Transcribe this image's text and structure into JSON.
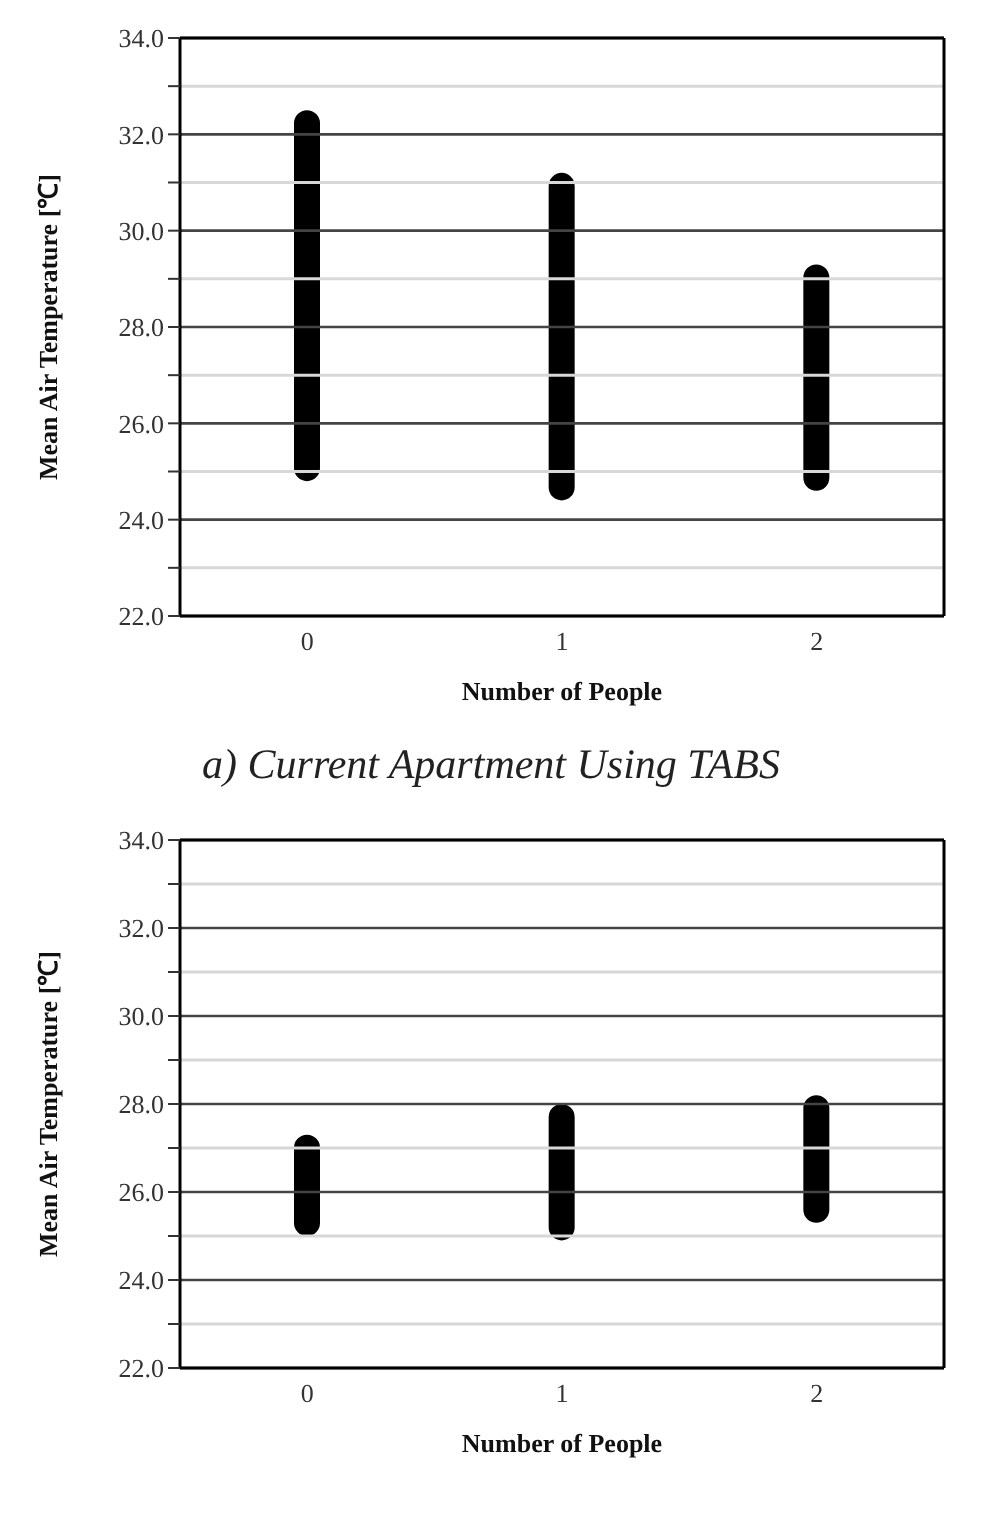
{
  "chart_data": [
    {
      "type": "bar",
      "title": "a) Current Apartment Using TABS",
      "xlabel": "Number of People",
      "ylabel": "Mean Air Temperature [℃]",
      "categories": [
        "0",
        "1",
        "2"
      ],
      "series": [
        {
          "color": "#000000",
          "base": [
            24.8,
            24.4,
            24.6
          ],
          "values": [
            7.7,
            6.8,
            4.7
          ]
        }
      ],
      "ylim": [
        22,
        34
      ],
      "yticks": [
        {
          "value": 22,
          "label": "22.0"
        },
        {
          "value": 23,
          "label": null
        },
        {
          "value": 24,
          "label": "24.0"
        },
        {
          "value": 25,
          "label": null
        },
        {
          "value": 26,
          "label": "26.0"
        },
        {
          "value": 27,
          "label": null
        },
        {
          "value": 28,
          "label": "28.0"
        },
        {
          "value": 29,
          "label": null
        },
        {
          "value": 30,
          "label": "30.0"
        },
        {
          "value": 31,
          "label": null
        },
        {
          "value": 32,
          "label": "32.0"
        },
        {
          "value": 33,
          "label": null
        },
        {
          "value": 34,
          "label": "34.0"
        }
      ],
      "grid": "y"
    },
    {
      "type": "bar",
      "xlabel": "Number of People",
      "ylabel": "Mean Air Temperature [℃]",
      "categories": [
        "0",
        "1",
        "2"
      ],
      "series": [
        {
          "color": "#000000",
          "base": [
            25.0,
            24.9,
            25.3
          ],
          "values": [
            2.3,
            3.1,
            2.9
          ]
        }
      ],
      "ylim": [
        22,
        34
      ],
      "yticks": [
        {
          "value": 22,
          "label": "22.0"
        },
        {
          "value": 23,
          "label": null
        },
        {
          "value": 24,
          "label": "24.0"
        },
        {
          "value": 25,
          "label": null
        },
        {
          "value": 26,
          "label": "26.0"
        },
        {
          "value": 27,
          "label": null
        },
        {
          "value": 28,
          "label": "28.0"
        },
        {
          "value": 29,
          "label": null
        },
        {
          "value": 30,
          "label": "30.0"
        },
        {
          "value": 31,
          "label": null
        },
        {
          "value": 32,
          "label": "32.0"
        },
        {
          "value": 33,
          "label": null
        },
        {
          "value": 34,
          "label": "34.0"
        }
      ],
      "grid": "y"
    }
  ]
}
